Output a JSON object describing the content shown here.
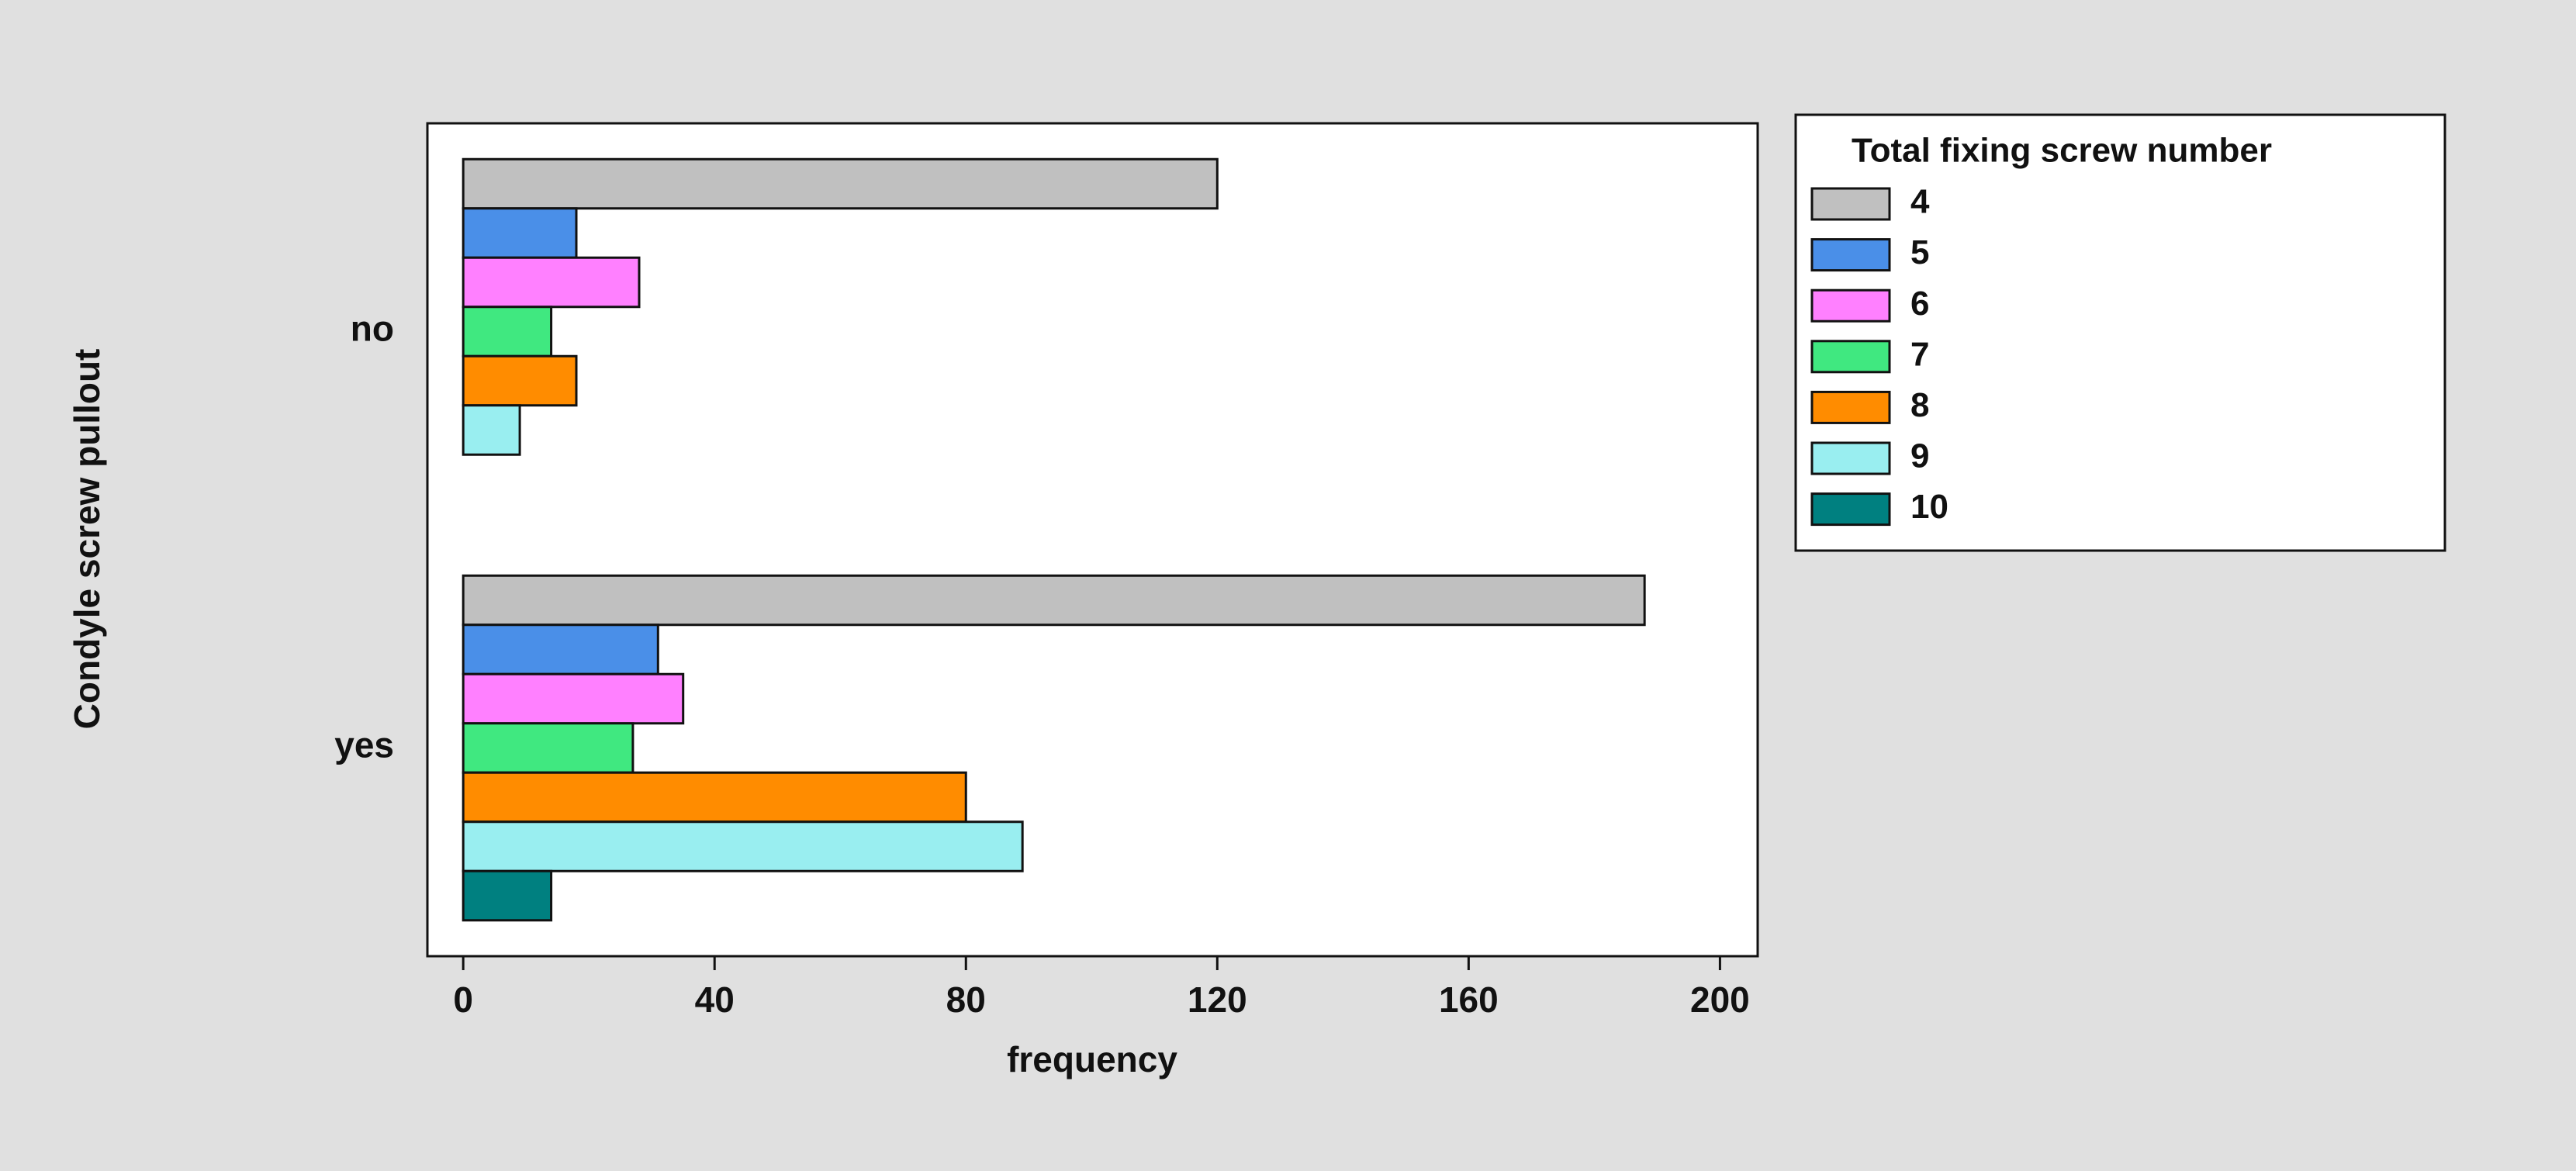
{
  "chart_data": {
    "type": "bar",
    "orientation": "horizontal",
    "y_label": "Condyle screw pullout",
    "x_label": "frequency",
    "legend_title": "Total fixing screw number",
    "legend_position": "outside right",
    "categories": [
      "no",
      "yes"
    ],
    "series": [
      {
        "name": "4",
        "color": "#c0c0c0",
        "values": [
          120,
          188
        ]
      },
      {
        "name": "5",
        "color": "#4a8fe8",
        "values": [
          18,
          31
        ]
      },
      {
        "name": "6",
        "color": "#ff80ff",
        "values": [
          28,
          35
        ]
      },
      {
        "name": "7",
        "color": "#40e880",
        "values": [
          14,
          27
        ]
      },
      {
        "name": "8",
        "color": "#ff8c00",
        "values": [
          18,
          80
        ]
      },
      {
        "name": "9",
        "color": "#99eef0",
        "values": [
          9,
          89
        ]
      },
      {
        "name": "10",
        "color": "#008080",
        "values": [
          0,
          14
        ]
      }
    ],
    "xlim": [
      -5.7,
      206
    ],
    "xticks": [
      0,
      40,
      80,
      120,
      160,
      200
    ],
    "grid": false
  }
}
